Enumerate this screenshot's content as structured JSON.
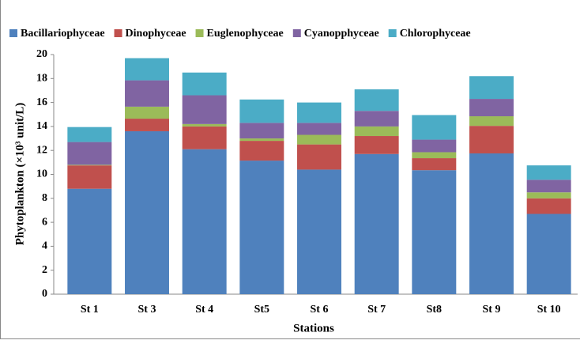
{
  "chart_data": {
    "type": "stacked_bar",
    "categories": [
      "St 1",
      "St 3",
      "St 4",
      "St5",
      "St 6",
      "St 7",
      "St8",
      "St 9",
      "St 10"
    ],
    "series": [
      {
        "name": "Bacillariophyceae",
        "color": "#4f81bd",
        "values": [
          8.8,
          13.6,
          12.1,
          11.15,
          10.4,
          11.7,
          10.35,
          11.75,
          6.7
        ]
      },
      {
        "name": "Dinophyceae",
        "color": "#c0504d",
        "values": [
          1.95,
          1.05,
          1.9,
          1.65,
          2.1,
          1.5,
          1.0,
          2.3,
          1.3
        ]
      },
      {
        "name": "Euglenophyceae",
        "color": "#9bbb59",
        "values": [
          0.05,
          1.0,
          0.2,
          0.2,
          0.8,
          0.8,
          0.5,
          0.8,
          0.5
        ]
      },
      {
        "name": "Cyanopphyceae",
        "color": "#8064a2",
        "values": [
          1.9,
          2.2,
          2.4,
          1.3,
          1.0,
          1.3,
          1.05,
          1.45,
          1.05
        ]
      },
      {
        "name": "Chlorophyceae",
        "color": "#4bacc6",
        "values": [
          1.25,
          1.85,
          1.9,
          1.95,
          1.7,
          1.8,
          2.05,
          1.9,
          1.2
        ]
      }
    ],
    "xlabel": "Stations",
    "ylabel": "Phytoplankton (×10³ unit/L)",
    "ylim": [
      0,
      20
    ],
    "yticks": [
      0,
      2,
      4,
      6,
      8,
      10,
      12,
      14,
      16,
      18,
      20
    ],
    "legend": "top"
  }
}
